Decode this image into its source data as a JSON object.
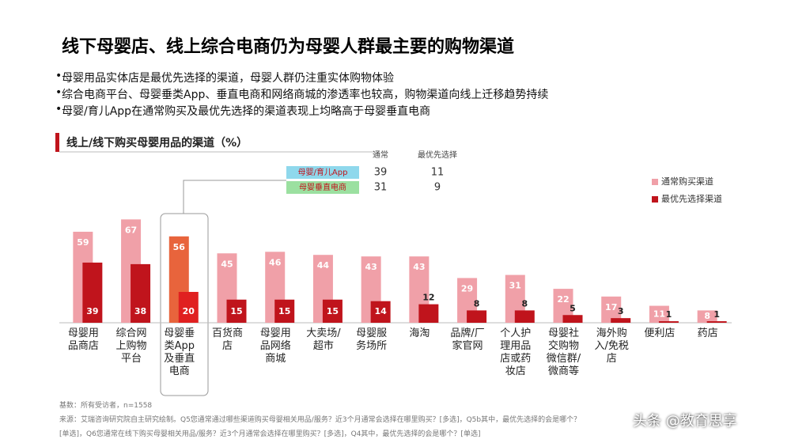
{
  "header": {
    "title": "线下母婴店、线上综合电商仍为母婴人群最主要的购物渠道",
    "bullets": [
      "母婴用品实体店是最优先选择的渠道，母婴人群仍注重实体购物体验",
      "综合电商平台、母婴垂类App、垂直电商和网络商城的渗透率也较高，购物渠道向线上迁移趋势持续",
      "母婴/育儿App在通常购买及最优先选择的渠道表现上均略高于母婴垂直电商"
    ]
  },
  "chart_data": {
    "type": "bar",
    "title": "线上/线下购买母婴用品的渠道（%）",
    "categories": [
      "母婴用\n品商店",
      "综合网\n上购物\n平台",
      "母婴垂\n类App\n及垂直\n电商",
      "百货商\n店",
      "母婴用\n品网络\n商城",
      "大卖场/\n超市",
      "母婴服\n务场所",
      "海淘",
      "品牌/厂\n家官网",
      "个人护\n理用品\n店或药\n妆店",
      "母婴社\n交购物\n微信群/\n微商等",
      "海外购\n入/免税\n店",
      "便利店",
      "药店"
    ],
    "series": [
      {
        "name": "通常购买渠道",
        "color": "#f0a0a8",
        "highlight_color": "#e8643c",
        "values": [
          59,
          67,
          56,
          45,
          46,
          44,
          43,
          43,
          29,
          31,
          22,
          17,
          11,
          8
        ]
      },
      {
        "name": "最优先选择渠道",
        "color": "#c0141c",
        "highlight_color": "#e02020",
        "values": [
          39,
          38,
          20,
          15,
          15,
          15,
          14,
          12,
          8,
          8,
          5,
          3,
          1,
          1
        ]
      }
    ],
    "highlight": 2,
    "ylim": [
      0,
      80
    ],
    "legend": "top-right",
    "callout": {
      "columns": [
        "通常",
        "最优先选择"
      ],
      "rows": [
        {
          "label": "母婴/育儿App",
          "color": "#8fd8ec",
          "values": [
            "39",
            "11"
          ]
        },
        {
          "label": "母婴垂直电商",
          "color": "#9be0a0",
          "values": [
            "31",
            "9"
          ]
        }
      ]
    }
  },
  "footnotes": [
    "基数：所有受访者，n=1558",
    "来源：艾瑞咨询研究院自主研究绘制。Q5您通常通过哪些渠道购买母婴相关用品/服务？近3个月通常会选择在哪里购买？[多选]，Q5b其中，最优先选择的会是哪个？",
    "[单选]，Q6您通常在线下购买母婴相关用品/服务？近3个月通常会选择在哪里购买？[多选]，Q4其中，最优先选择的会是哪个？[单选]"
  ],
  "watermark": "头条 @教育思享"
}
